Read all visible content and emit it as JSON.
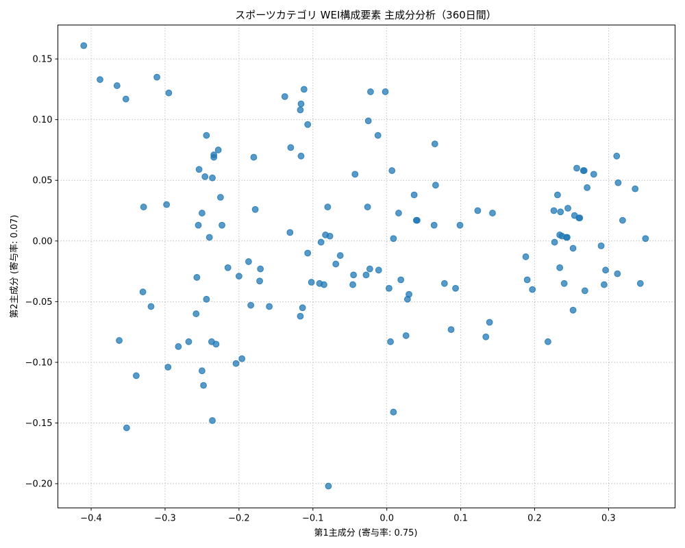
{
  "chart_data": {
    "type": "scatter",
    "title": "スポーツカテゴリ WEI構成要素 主成分分析（360日間）",
    "xlabel": "第1主成分 (寄与率: 0.75)",
    "ylabel": "第2主成分 (寄与率: 0.07)",
    "xlim": [
      -0.445,
      0.39
    ],
    "ylim": [
      -0.22,
      0.178
    ],
    "xticks": [
      -0.4,
      -0.3,
      -0.2,
      -0.1,
      0.0,
      0.1,
      0.2,
      0.3
    ],
    "xtick_labels": [
      "−0.4",
      "−0.3",
      "−0.2",
      "−0.1",
      "0.0",
      "0.1",
      "0.2",
      "0.3"
    ],
    "yticks": [
      -0.2,
      -0.15,
      -0.1,
      -0.05,
      0.0,
      0.05,
      0.1,
      0.15
    ],
    "ytick_labels": [
      "−0.20",
      "−0.15",
      "−0.10",
      "−0.05",
      "0.00",
      "0.05",
      "0.10",
      "0.15"
    ],
    "grid": true,
    "point_color": "#1f77b4",
    "x": [
      -0.41,
      -0.388,
      -0.365,
      -0.353,
      -0.311,
      -0.295,
      -0.244,
      -0.234,
      -0.234,
      -0.254,
      -0.246,
      -0.236,
      -0.228,
      -0.225,
      -0.329,
      -0.298,
      -0.25,
      -0.255,
      -0.24,
      -0.223,
      -0.33,
      -0.319,
      -0.257,
      -0.258,
      -0.244,
      -0.362,
      -0.339,
      -0.352,
      -0.296,
      -0.282,
      -0.268,
      -0.25,
      -0.248,
      -0.236,
      -0.231,
      -0.237,
      -0.215,
      -0.2,
      -0.187,
      -0.184,
      -0.171,
      -0.172,
      -0.159,
      -0.18,
      -0.178,
      -0.204,
      -0.196,
      -0.138,
      -0.13,
      -0.131,
      -0.116,
      -0.117,
      -0.112,
      -0.107,
      -0.116,
      -0.107,
      -0.102,
      -0.091,
      -0.085,
      -0.114,
      -0.117,
      -0.089,
      -0.083,
      -0.077,
      -0.08,
      -0.069,
      -0.063,
      -0.079,
      -0.043,
      -0.045,
      -0.046,
      -0.026,
      -0.023,
      -0.028,
      -0.025,
      -0.012,
      -0.022,
      -0.011,
      -0.002,
      0.007,
      0.009,
      0.016,
      0.003,
      0.019,
      0.028,
      0.03,
      0.005,
      0.026,
      0.009,
      0.037,
      0.04,
      0.041,
      0.065,
      0.064,
      0.066,
      0.078,
      0.093,
      0.099,
      0.087,
      0.123,
      0.134,
      0.139,
      0.143,
      0.188,
      0.19,
      0.197,
      0.218,
      0.226,
      0.227,
      0.231,
      0.234,
      0.235,
      0.234,
      0.24,
      0.237,
      0.243,
      0.244,
      0.245,
      0.252,
      0.252,
      0.254,
      0.257,
      0.26,
      0.261,
      0.266,
      0.267,
      0.268,
      0.271,
      0.28,
      0.29,
      0.294,
      0.296,
      0.311,
      0.312,
      0.313,
      0.319,
      0.336,
      0.343,
      0.35
    ],
    "y": [
      0.161,
      0.133,
      0.128,
      0.117,
      0.135,
      0.122,
      0.087,
      0.071,
      0.069,
      0.059,
      0.053,
      0.052,
      0.075,
      0.036,
      0.028,
      0.03,
      0.023,
      0.013,
      0.003,
      0.013,
      -0.042,
      -0.054,
      -0.03,
      -0.06,
      -0.048,
      -0.082,
      -0.111,
      -0.154,
      -0.104,
      -0.087,
      -0.083,
      -0.107,
      -0.119,
      -0.148,
      -0.085,
      -0.083,
      -0.022,
      -0.029,
      -0.017,
      -0.053,
      -0.023,
      -0.033,
      -0.054,
      0.069,
      0.026,
      -0.101,
      -0.097,
      0.119,
      0.077,
      0.007,
      0.113,
      0.108,
      0.125,
      0.096,
      0.07,
      -0.01,
      -0.034,
      -0.035,
      -0.036,
      -0.055,
      -0.062,
      -0.001,
      0.005,
      0.004,
      0.028,
      -0.019,
      -0.012,
      -0.202,
      0.055,
      -0.028,
      -0.036,
      0.028,
      -0.023,
      -0.028,
      0.099,
      0.087,
      0.123,
      -0.024,
      0.123,
      0.058,
      0.002,
      0.023,
      -0.039,
      -0.032,
      -0.048,
      -0.044,
      -0.083,
      -0.078,
      -0.141,
      0.038,
      0.017,
      0.017,
      0.08,
      0.013,
      0.046,
      -0.035,
      -0.039,
      0.013,
      -0.073,
      0.025,
      -0.079,
      -0.067,
      0.023,
      -0.013,
      -0.032,
      -0.04,
      -0.083,
      0.025,
      -0.001,
      0.038,
      0.005,
      0.024,
      -0.022,
      -0.035,
      0.004,
      0.003,
      0.003,
      0.027,
      -0.006,
      -0.057,
      0.021,
      0.06,
      0.019,
      0.019,
      0.058,
      0.058,
      -0.041,
      0.044,
      0.055,
      -0.004,
      -0.036,
      -0.024,
      0.07,
      -0.027,
      0.048,
      0.017,
      0.043,
      -0.035,
      0.002
    ]
  }
}
